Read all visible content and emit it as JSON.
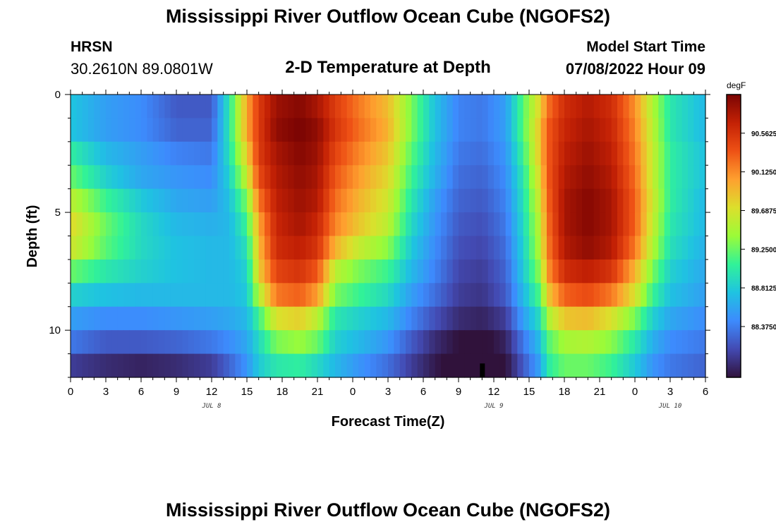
{
  "header": {
    "title": "Mississippi River Outflow Ocean Cube (NGOFS2)",
    "station": "HRSN",
    "coords": "30.2610N  89.0801W",
    "subtitle": "2-D Temperature at Depth",
    "start_label": "Model Start Time",
    "start_value": "07/08/2022 Hour 09"
  },
  "footer": {
    "title": "Mississippi River Outflow Ocean Cube (NGOFS2)"
  },
  "colors": {
    "axis": "#000000",
    "background": "#ffffff"
  },
  "chart_data": {
    "type": "heatmap",
    "title": "2-D Temperature at Depth",
    "xlabel": "Forecast Time(Z)",
    "ylabel": "Depth (ft)",
    "x_unit": "hours since Jul 8 00Z",
    "xlim": [
      0,
      54
    ],
    "ylim": [
      0,
      12
    ],
    "x_ticks": [
      0,
      3,
      6,
      9,
      12,
      15,
      18,
      21,
      24,
      27,
      30,
      33,
      36,
      39,
      42,
      45,
      48,
      51,
      54
    ],
    "x_tick_labels": [
      "0",
      "3",
      "6",
      "9",
      "12",
      "15",
      "18",
      "21",
      "0",
      "3",
      "6",
      "9",
      "12",
      "15",
      "18",
      "21",
      "0",
      "3",
      "6"
    ],
    "y_ticks": [
      0,
      5,
      10
    ],
    "y_tick_labels": [
      "0",
      "5",
      "10"
    ],
    "date_labels": [
      {
        "hour": 12,
        "label": "JUL 8"
      },
      {
        "hour": 36,
        "label": "JUL 9"
      },
      {
        "hour": 51,
        "label": "JUL 10"
      }
    ],
    "colorbar": {
      "unit": "degF",
      "range": [
        87.8,
        91.0
      ],
      "ticks": [
        90.5625,
        90.125,
        89.6875,
        89.25,
        88.8125,
        88.375
      ],
      "tick_labels": [
        "90.5625",
        "90.1250",
        "89.6875",
        "89.2500",
        "88.8125",
        "88.3750"
      ]
    },
    "x_time_steps": [
      0,
      3,
      6,
      9,
      12,
      13.5,
      15,
      16,
      17.5,
      19.5,
      21,
      22.5,
      24.5,
      27,
      29,
      31,
      33,
      35,
      37,
      38.5,
      40,
      40.5,
      42,
      44,
      46,
      48,
      49.5,
      51,
      54
    ],
    "depth_levels_ft": [
      0.5,
      1.5,
      2.5,
      3.5,
      4.5,
      5.5,
      6.5,
      7.5,
      8.5,
      9.5,
      10.5,
      11.5
    ],
    "values_degF": [
      [
        88.78,
        88.55,
        88.45,
        88.2,
        88.2,
        89.0,
        90.0,
        90.5,
        90.85,
        90.95,
        90.8,
        90.5,
        90.2,
        89.9,
        89.3,
        88.75,
        88.4,
        88.35,
        88.55,
        89.2,
        89.8,
        90.2,
        90.6,
        90.75,
        90.6,
        90.1,
        89.5,
        89.0,
        88.7
      ],
      [
        88.78,
        88.55,
        88.45,
        88.25,
        88.25,
        89.0,
        90.0,
        90.5,
        90.9,
        91.0,
        90.9,
        90.55,
        90.25,
        89.95,
        89.3,
        88.75,
        88.4,
        88.35,
        88.55,
        89.2,
        89.9,
        90.3,
        90.65,
        90.8,
        90.65,
        90.15,
        89.55,
        89.0,
        88.7
      ],
      [
        89.05,
        88.7,
        88.55,
        88.4,
        88.35,
        88.95,
        89.8,
        90.5,
        90.8,
        90.95,
        90.85,
        90.45,
        90.15,
        89.85,
        89.2,
        88.7,
        88.35,
        88.3,
        88.5,
        89.1,
        89.9,
        90.3,
        90.7,
        90.85,
        90.7,
        90.2,
        89.6,
        89.05,
        88.75
      ],
      [
        89.25,
        88.85,
        88.6,
        88.5,
        88.45,
        88.85,
        89.6,
        90.4,
        90.75,
        90.9,
        90.8,
        90.35,
        90.05,
        89.75,
        89.1,
        88.65,
        88.3,
        88.25,
        88.45,
        89.0,
        89.8,
        90.3,
        90.75,
        90.9,
        90.75,
        90.25,
        89.6,
        89.05,
        88.75
      ],
      [
        89.55,
        89.1,
        88.8,
        88.6,
        88.55,
        88.75,
        89.3,
        90.2,
        90.7,
        90.85,
        90.75,
        90.25,
        89.95,
        89.65,
        89.0,
        88.55,
        88.25,
        88.2,
        88.4,
        88.95,
        89.7,
        90.25,
        90.8,
        90.95,
        90.8,
        90.3,
        89.65,
        89.05,
        88.7
      ],
      [
        89.75,
        89.25,
        88.9,
        88.7,
        88.65,
        88.7,
        89.1,
        90.0,
        90.65,
        90.8,
        90.65,
        90.15,
        89.85,
        89.55,
        88.9,
        88.5,
        88.2,
        88.15,
        88.35,
        88.9,
        89.6,
        90.2,
        90.8,
        90.95,
        90.8,
        90.3,
        89.6,
        89.0,
        88.7
      ],
      [
        89.65,
        89.2,
        88.9,
        88.75,
        88.7,
        88.7,
        88.95,
        89.9,
        90.6,
        90.7,
        90.55,
        89.95,
        89.6,
        89.35,
        88.8,
        88.45,
        88.15,
        88.1,
        88.3,
        88.85,
        89.55,
        90.15,
        90.75,
        90.9,
        90.75,
        90.2,
        89.5,
        88.95,
        88.65
      ],
      [
        89.25,
        89.0,
        88.85,
        88.75,
        88.7,
        88.7,
        88.85,
        89.8,
        90.45,
        90.55,
        90.35,
        89.55,
        89.3,
        89.1,
        88.7,
        88.4,
        88.1,
        88.05,
        88.25,
        88.8,
        89.4,
        90.05,
        90.6,
        90.7,
        90.55,
        89.95,
        89.3,
        88.85,
        88.6
      ],
      [
        88.85,
        88.75,
        88.7,
        88.7,
        88.7,
        88.7,
        88.8,
        89.5,
        90.2,
        90.3,
        90.05,
        89.3,
        89.1,
        88.9,
        88.55,
        88.3,
        88.05,
        88.0,
        88.2,
        88.7,
        89.2,
        89.8,
        90.3,
        90.4,
        90.2,
        89.7,
        89.1,
        88.75,
        88.55
      ],
      [
        88.55,
        88.45,
        88.45,
        88.5,
        88.55,
        88.6,
        88.7,
        89.1,
        89.7,
        89.8,
        89.55,
        89.0,
        88.85,
        88.7,
        88.4,
        88.15,
        87.95,
        87.9,
        88.05,
        88.55,
        88.95,
        89.45,
        89.85,
        89.9,
        89.7,
        89.3,
        88.85,
        88.6,
        88.45
      ],
      [
        88.35,
        88.2,
        88.2,
        88.25,
        88.35,
        88.45,
        88.6,
        88.9,
        89.3,
        89.4,
        89.25,
        88.85,
        88.7,
        88.5,
        88.2,
        87.95,
        87.8,
        87.75,
        87.9,
        88.35,
        88.75,
        89.15,
        89.45,
        89.5,
        89.35,
        89.0,
        88.65,
        88.45,
        88.35
      ],
      [
        88.05,
        87.95,
        87.9,
        87.95,
        88.05,
        88.25,
        88.5,
        88.8,
        89.0,
        89.05,
        88.9,
        88.7,
        88.5,
        88.3,
        88.05,
        87.85,
        87.7,
        87.65,
        87.8,
        88.2,
        88.6,
        89.0,
        89.25,
        89.25,
        89.1,
        88.8,
        88.5,
        88.35,
        88.25
      ]
    ],
    "marker": {
      "hour": 35,
      "depth_ft": 11.5
    }
  }
}
